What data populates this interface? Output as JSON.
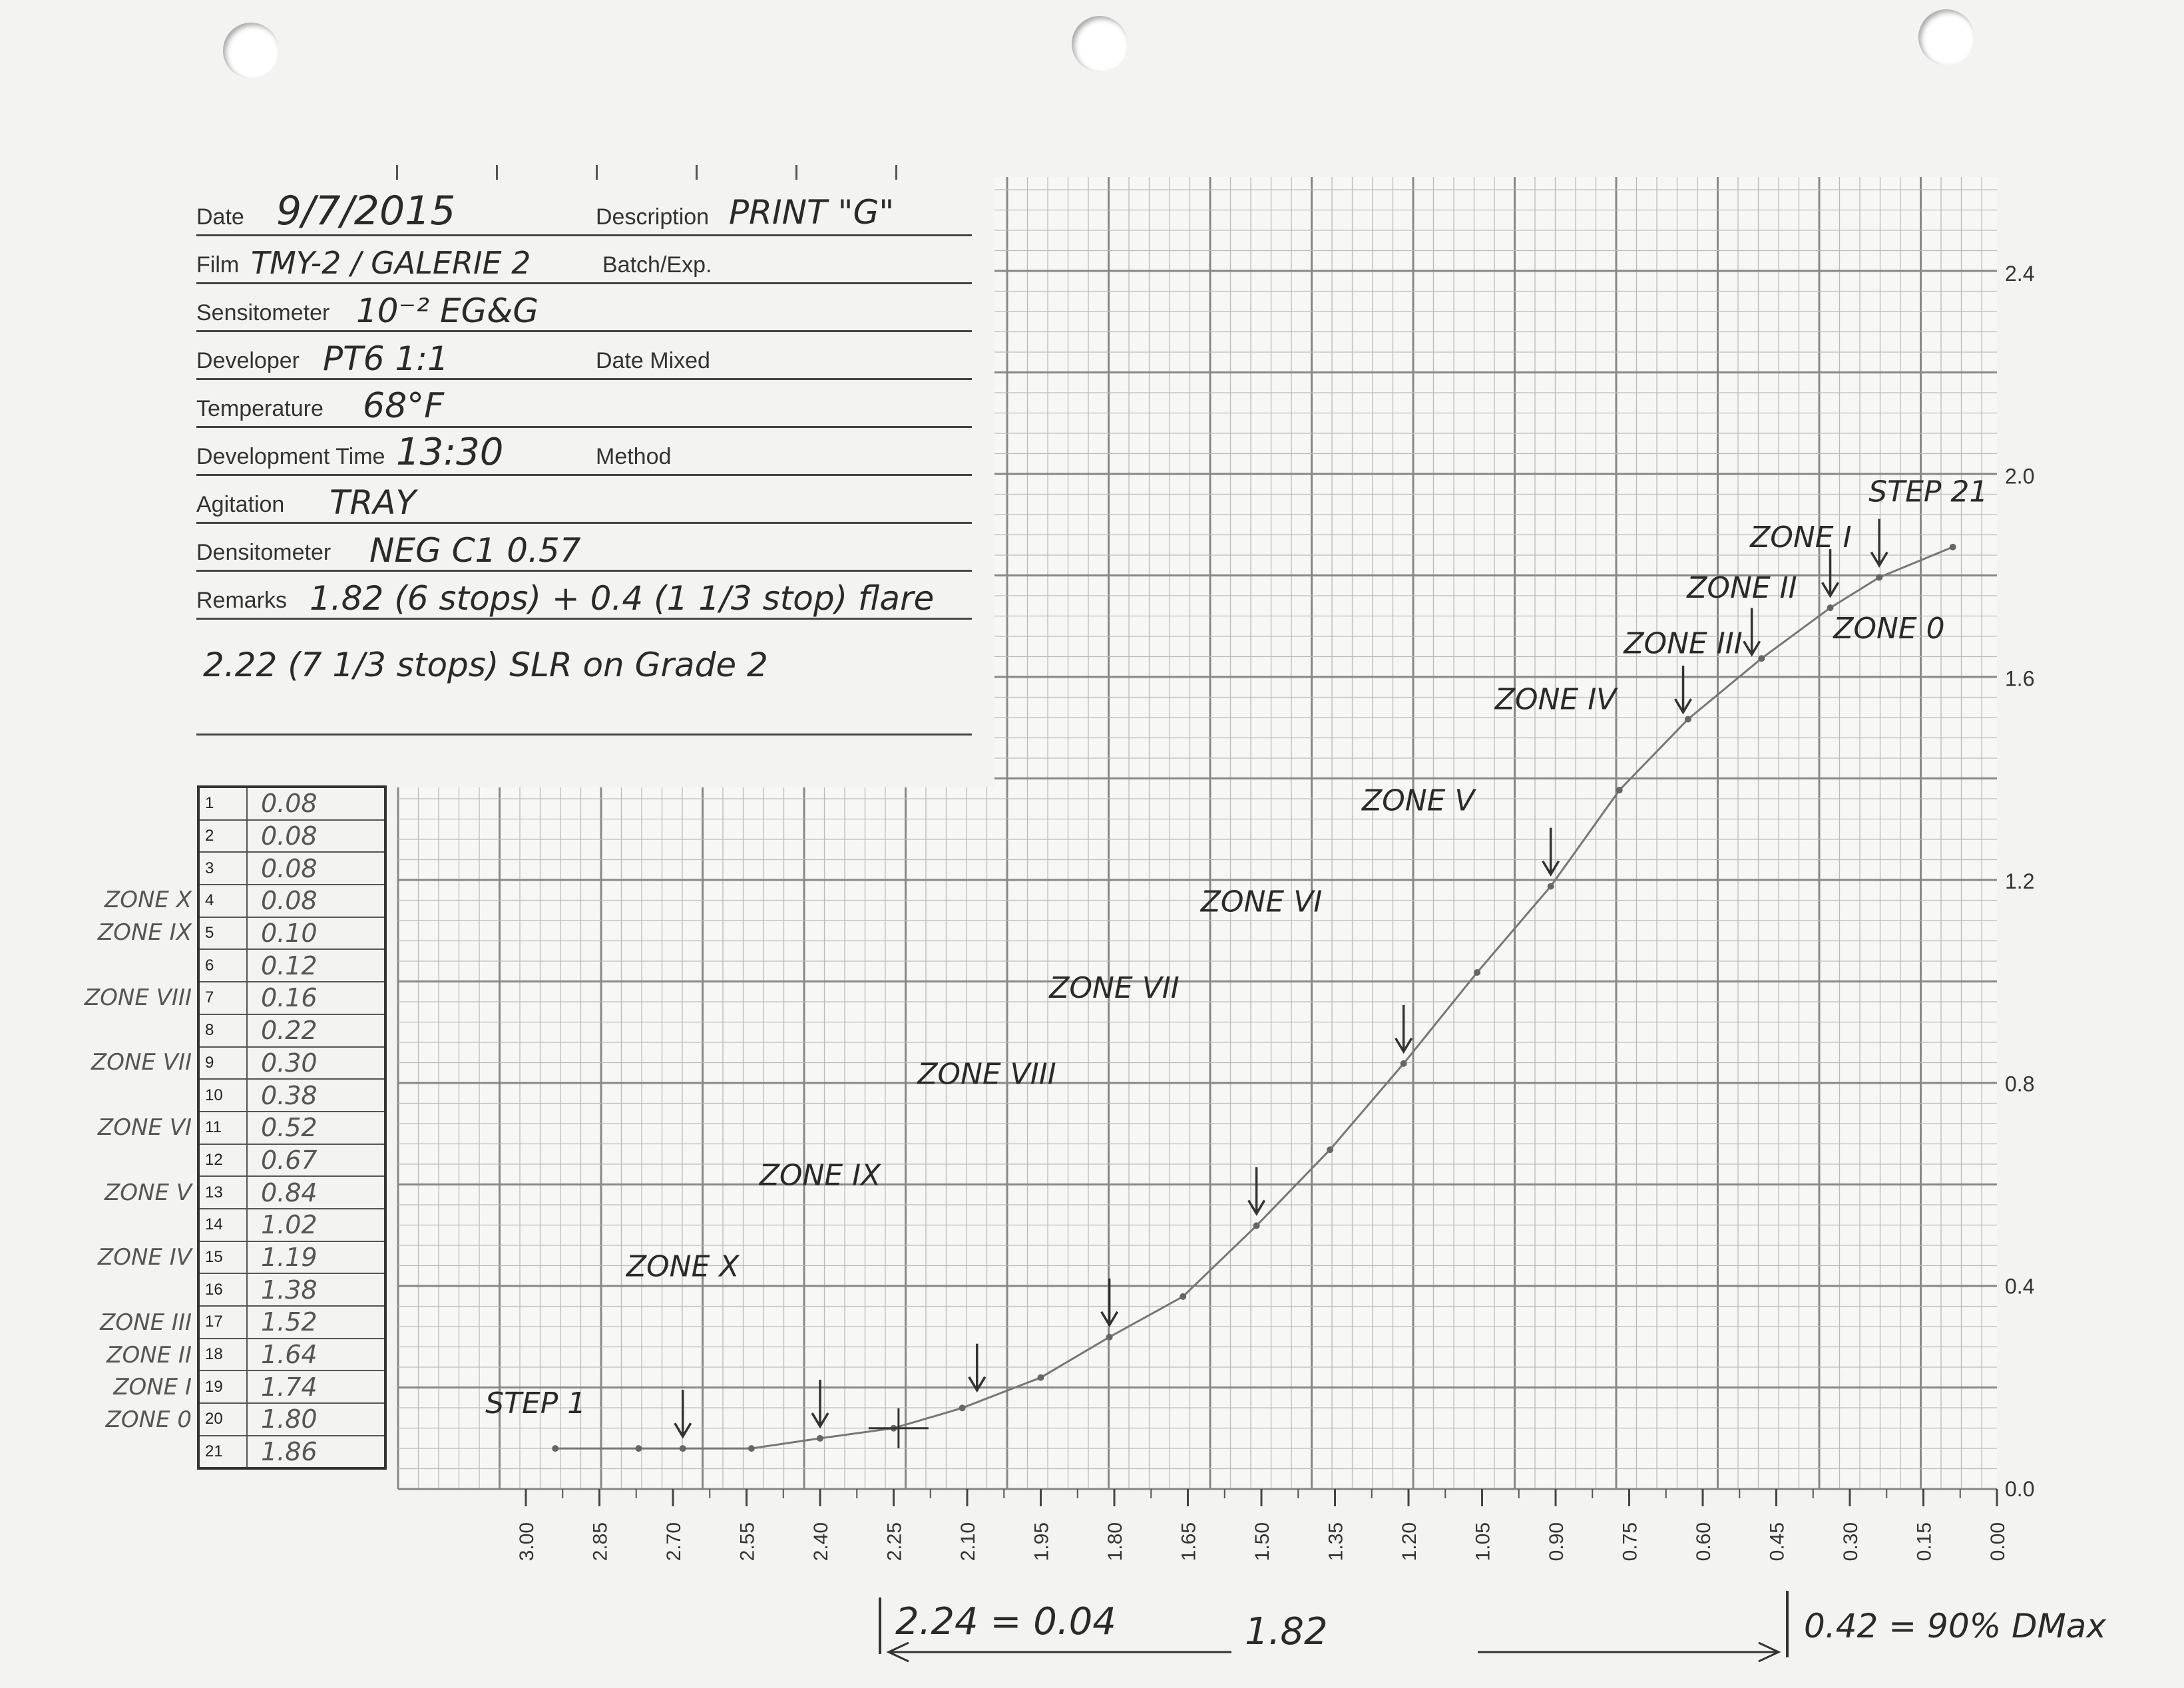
{
  "form": {
    "date_label": "Date",
    "date_value": "9/7/2015",
    "description_label": "Description",
    "description_value": "PRINT \"G\"",
    "film_label": "Film",
    "film_value": "TMY-2 / GALERIE 2",
    "batch_label": "Batch/Exp.",
    "sensitometer_label": "Sensitometer",
    "sensitometer_value": "10⁻² EG&G",
    "developer_label": "Developer",
    "developer_value": "PT6 1:1",
    "date_mixed_label": "Date Mixed",
    "temperature_label": "Temperature",
    "temperature_value": "68°F",
    "dev_time_label": "Development Time",
    "dev_time_value": "13:30",
    "method_label": "Method",
    "agitation_label": "Agitation",
    "agitation_value": "TRAY",
    "densitometer_label": "Densitometer",
    "densitometer_value": "NEG C1 0.57",
    "remarks_label": "Remarks",
    "remarks_line1": "1.82 (6 stops) + 0.4 (1 1/3 stop) flare",
    "remarks_line2": "2.22 (7 1/3 stops) SLR on Grade 2"
  },
  "steps": [
    {
      "n": "1",
      "v": "0.08"
    },
    {
      "n": "2",
      "v": "0.08"
    },
    {
      "n": "3",
      "v": "0.08"
    },
    {
      "n": "4",
      "v": "0.08"
    },
    {
      "n": "5",
      "v": "0.10"
    },
    {
      "n": "6",
      "v": "0.12"
    },
    {
      "n": "7",
      "v": "0.16"
    },
    {
      "n": "8",
      "v": "0.22"
    },
    {
      "n": "9",
      "v": "0.30"
    },
    {
      "n": "10",
      "v": "0.38"
    },
    {
      "n": "11",
      "v": "0.52"
    },
    {
      "n": "12",
      "v": "0.67"
    },
    {
      "n": "13",
      "v": "0.84"
    },
    {
      "n": "14",
      "v": "1.02"
    },
    {
      "n": "15",
      "v": "1.19"
    },
    {
      "n": "16",
      "v": "1.38"
    },
    {
      "n": "17",
      "v": "1.52"
    },
    {
      "n": "18",
      "v": "1.64"
    },
    {
      "n": "19",
      "v": "1.74"
    },
    {
      "n": "20",
      "v": "1.80"
    },
    {
      "n": "21",
      "v": "1.86"
    }
  ],
  "side_zones": [
    {
      "label": "ZONE X",
      "step": 4
    },
    {
      "label": "ZONE IX",
      "step": 5
    },
    {
      "label": "ZONE VIII",
      "step": 7
    },
    {
      "label": "ZONE VII",
      "step": 9
    },
    {
      "label": "ZONE VI",
      "step": 11
    },
    {
      "label": "ZONE V",
      "step": 13
    },
    {
      "label": "ZONE IV",
      "step": 15
    },
    {
      "label": "ZONE III",
      "step": 17
    },
    {
      "label": "ZONE II",
      "step": 18
    },
    {
      "label": "ZONE I",
      "step": 19
    },
    {
      "label": "ZONE 0",
      "step": 20
    }
  ],
  "chart_data": {
    "type": "line",
    "x_axis": {
      "min": 0.0,
      "max": 3.0,
      "reversed": true,
      "tick_labels": [
        "3.00",
        "2.85",
        "2.70",
        "2.55",
        "2.40",
        "2.25",
        "2.10",
        "1.95",
        "1.80",
        "1.65",
        "1.50",
        "1.35",
        "1.20",
        "1.05",
        "0.90",
        "0.75",
        "0.60",
        "0.45",
        "0.30",
        "0.15",
        "0.00"
      ]
    },
    "y_axis": {
      "min": 0.0,
      "max": 2.4,
      "tick_labels": [
        "0.0",
        "0.4",
        "0.8",
        "1.2",
        "1.6",
        "2.0",
        "2.4"
      ]
    },
    "grid": true,
    "series": [
      {
        "x": [
          2.94,
          2.77,
          2.68,
          2.54,
          2.4,
          2.25,
          2.11,
          1.95,
          1.81,
          1.66,
          1.51,
          1.36,
          1.21,
          1.06,
          0.91,
          0.77,
          0.63,
          0.48,
          0.34,
          0.24,
          0.09
        ],
        "y": [
          0.08,
          0.08,
          0.08,
          0.08,
          0.1,
          0.12,
          0.16,
          0.22,
          0.3,
          0.38,
          0.52,
          0.67,
          0.84,
          1.02,
          1.19,
          1.38,
          1.52,
          1.64,
          1.74,
          1.8,
          1.86
        ]
      }
    ],
    "annotations": [
      {
        "text": "STEP 1",
        "x": 2.98,
        "y": 0.15
      },
      {
        "text": "ZONE X",
        "x": 2.68,
        "y": 0.42
      },
      {
        "text": "ZONE IX",
        "x": 2.4,
        "y": 0.6
      },
      {
        "text": "ZONE VIII",
        "x": 2.06,
        "y": 0.8
      },
      {
        "text": "ZONE VII",
        "x": 1.8,
        "y": 0.97
      },
      {
        "text": "ZONE VI",
        "x": 1.5,
        "y": 1.14
      },
      {
        "text": "ZONE V",
        "x": 1.18,
        "y": 1.34
      },
      {
        "text": "ZONE IV",
        "x": 0.9,
        "y": 1.54
      },
      {
        "text": "ZONE III",
        "x": 0.64,
        "y": 1.65
      },
      {
        "text": "ZONE II",
        "x": 0.52,
        "y": 1.76
      },
      {
        "text": "ZONE I",
        "x": 0.4,
        "y": 1.86
      },
      {
        "text": "STEP 21",
        "x": 0.14,
        "y": 1.95
      },
      {
        "text": "ZONE 0",
        "x": 0.22,
        "y": 1.68
      }
    ],
    "arrow_markers_x": [
      2.68,
      2.4,
      2.08,
      1.81,
      1.51,
      1.21,
      0.91,
      0.64,
      0.5,
      0.34,
      0.24
    ],
    "bottom_notes": {
      "left": "2.24 = 0.04",
      "middle": "1.82",
      "right": "0.42 = 90% DMax"
    }
  }
}
